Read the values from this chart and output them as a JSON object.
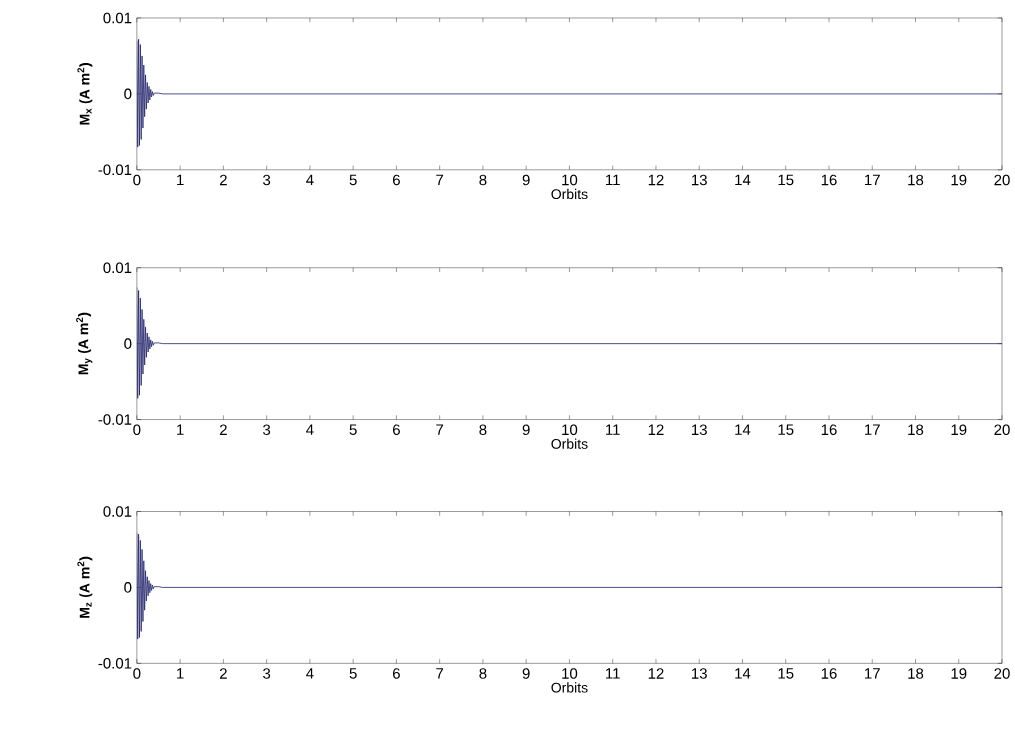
{
  "chart_data": [
    {
      "type": "line",
      "color": "#1f226b",
      "xlabel": "Orbits",
      "ylabel": "M$_{x}$ (A m$^{2}$)",
      "xlim": [
        0,
        20
      ],
      "ylim": [
        -0.01,
        0.01
      ],
      "xticks": [
        0,
        1,
        2,
        3,
        4,
        5,
        6,
        7,
        8,
        9,
        10,
        11,
        12,
        13,
        14,
        15,
        16,
        17,
        18,
        19,
        20
      ],
      "yticks": [
        -0.01,
        0,
        0.01
      ],
      "grid": false,
      "x": [
        0,
        0.02,
        0.04,
        0.06,
        0.08,
        0.1,
        0.12,
        0.14,
        0.16,
        0.18,
        0.2,
        0.22,
        0.24,
        0.26,
        0.28,
        0.3,
        0.32,
        0.34,
        0.36,
        0.38,
        0.4,
        0.5,
        0.6,
        20
      ],
      "values": [
        0.007,
        -0.007,
        0.0072,
        -0.0068,
        0.0065,
        -0.006,
        0.005,
        -0.0045,
        0.0038,
        -0.003,
        0.0025,
        -0.002,
        0.0015,
        -0.0012,
        0.001,
        -0.0008,
        0.0006,
        -0.0004,
        0.0003,
        -0.0002,
        0.0001,
        0.0001,
        0,
        0
      ]
    },
    {
      "type": "line",
      "color": "#1f226b",
      "xlabel": "Orbits",
      "ylabel": "M$_{y}$ (A m$^{2}$)",
      "xlim": [
        0,
        20
      ],
      "ylim": [
        -0.01,
        0.01
      ],
      "xticks": [
        0,
        1,
        2,
        3,
        4,
        5,
        6,
        7,
        8,
        9,
        10,
        11,
        12,
        13,
        14,
        15,
        16,
        17,
        18,
        19,
        20
      ],
      "yticks": [
        -0.01,
        0,
        0.01
      ],
      "grid": false,
      "x": [
        0,
        0.02,
        0.04,
        0.06,
        0.08,
        0.1,
        0.12,
        0.14,
        0.16,
        0.18,
        0.2,
        0.22,
        0.24,
        0.26,
        0.28,
        0.3,
        0.32,
        0.34,
        0.36,
        0.38,
        0.4,
        0.5,
        0.6,
        20
      ],
      "values": [
        0.0074,
        -0.0072,
        0.007,
        -0.0068,
        0.006,
        -0.0055,
        0.0045,
        -0.004,
        0.0032,
        -0.0028,
        0.0022,
        -0.0018,
        0.0014,
        -0.0011,
        0.0009,
        -0.0007,
        0.0005,
        -0.0004,
        0.0003,
        -0.0002,
        0.0001,
        0.0001,
        0,
        0
      ]
    },
    {
      "type": "line",
      "color": "#1f226b",
      "xlabel": "Orbits",
      "ylabel": "M$_{z}$ (A m$^{2}$)",
      "xlim": [
        0,
        20
      ],
      "ylim": [
        -0.01,
        0.01
      ],
      "xticks": [
        0,
        1,
        2,
        3,
        4,
        5,
        6,
        7,
        8,
        9,
        10,
        11,
        12,
        13,
        14,
        15,
        16,
        17,
        18,
        19,
        20
      ],
      "yticks": [
        -0.01,
        0,
        0.01
      ],
      "grid": false,
      "x": [
        0,
        0.02,
        0.04,
        0.06,
        0.08,
        0.1,
        0.12,
        0.14,
        0.16,
        0.18,
        0.2,
        0.22,
        0.24,
        0.26,
        0.28,
        0.3,
        0.32,
        0.34,
        0.36,
        0.38,
        0.4,
        0.5,
        0.6,
        20
      ],
      "values": [
        0.0072,
        -0.0068,
        0.007,
        -0.0066,
        0.0062,
        -0.0058,
        0.005,
        -0.0045,
        0.0035,
        -0.003,
        0.0022,
        -0.0018,
        0.0014,
        -0.0011,
        0.0009,
        -0.0007,
        0.0005,
        -0.0004,
        0.0003,
        -0.0002,
        0.0001,
        0.0001,
        0,
        0
      ]
    }
  ]
}
